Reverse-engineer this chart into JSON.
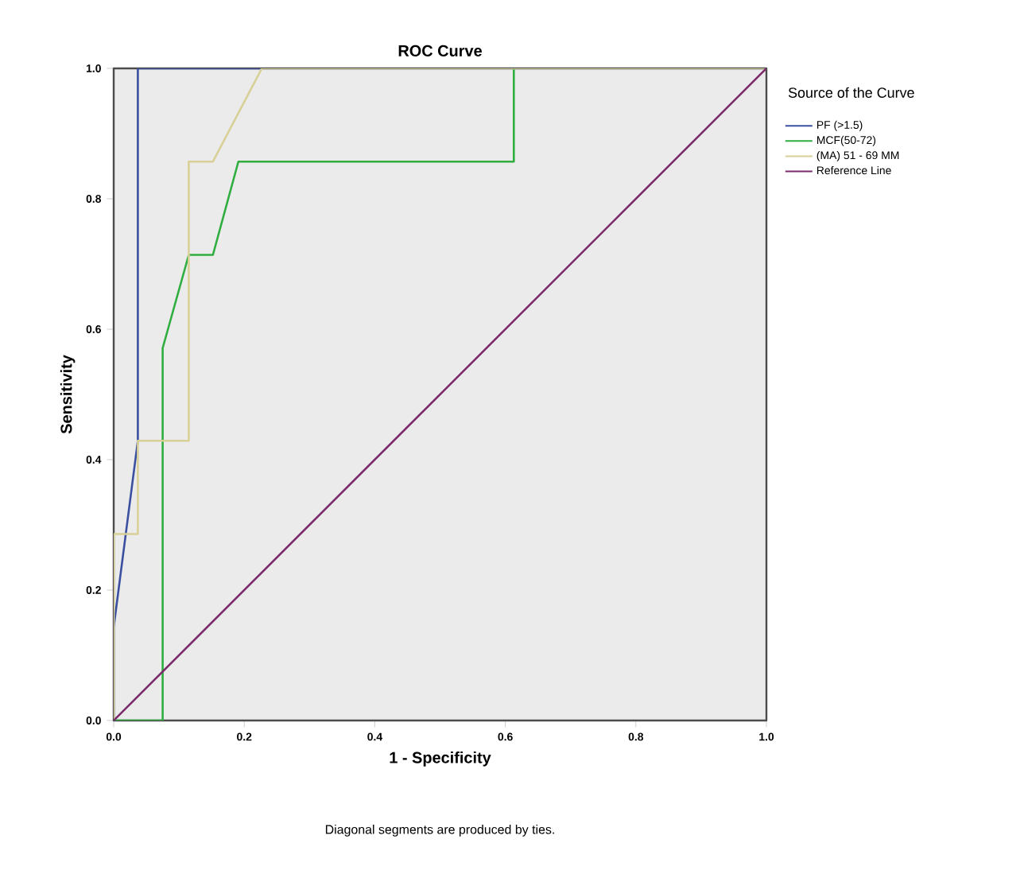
{
  "chart_data": {
    "type": "line",
    "title": "ROC Curve",
    "xlabel": "1 - Specificity",
    "ylabel": "Sensitivity",
    "legend_title": "Source of the Curve",
    "annotations": [
      "Diagonal segments are produced by ties."
    ],
    "series": [
      {
        "name": "PF (>1.5)",
        "color": "#3b4fa0",
        "x": [
          0,
          0,
          0.037,
          0.037,
          1
        ],
        "values": [
          0,
          0.143,
          0.429,
          1,
          1
        ]
      },
      {
        "name": "MCF(50-72)",
        "color": "#2fae3f",
        "x": [
          0,
          0.075,
          0.075,
          0.115,
          0.152,
          0.191,
          0.613,
          0.613
        ],
        "values": [
          0,
          0,
          0.571,
          0.714,
          0.714,
          0.857,
          0.857,
          1
        ]
      },
      {
        "name": "(MA) 51 - 69 MM",
        "color": "#d8d096",
        "x": [
          0,
          0,
          0.037,
          0.037,
          0.115,
          0.115,
          0.152,
          0.227,
          1
        ],
        "values": [
          0,
          0.286,
          0.286,
          0.429,
          0.429,
          0.857,
          0.857,
          1,
          1
        ]
      },
      {
        "name": "Reference Line",
        "color": "#7b2a6b",
        "x": [
          0,
          1
        ],
        "values": [
          0,
          1
        ]
      }
    ],
    "xlim": [
      0,
      1
    ],
    "ylim": [
      0,
      1
    ],
    "xticks": [
      {
        "value": 0,
        "label": "0.0"
      },
      {
        "value": 0.2,
        "label": "0.2"
      },
      {
        "value": 0.4,
        "label": "0.4"
      },
      {
        "value": 0.6,
        "label": "0.6"
      },
      {
        "value": 0.8,
        "label": "0.8"
      },
      {
        "value": 1,
        "label": "1.0"
      }
    ],
    "yticks": [
      {
        "value": 0,
        "label": "0.0"
      },
      {
        "value": 0.2,
        "label": "0.2"
      },
      {
        "value": 0.4,
        "label": "0.4"
      },
      {
        "value": 0.6,
        "label": "0.6"
      },
      {
        "value": 0.8,
        "label": "0.8"
      },
      {
        "value": 1,
        "label": "1.0"
      }
    ],
    "legend": "right",
    "marker": "none",
    "line_style": "solid"
  }
}
